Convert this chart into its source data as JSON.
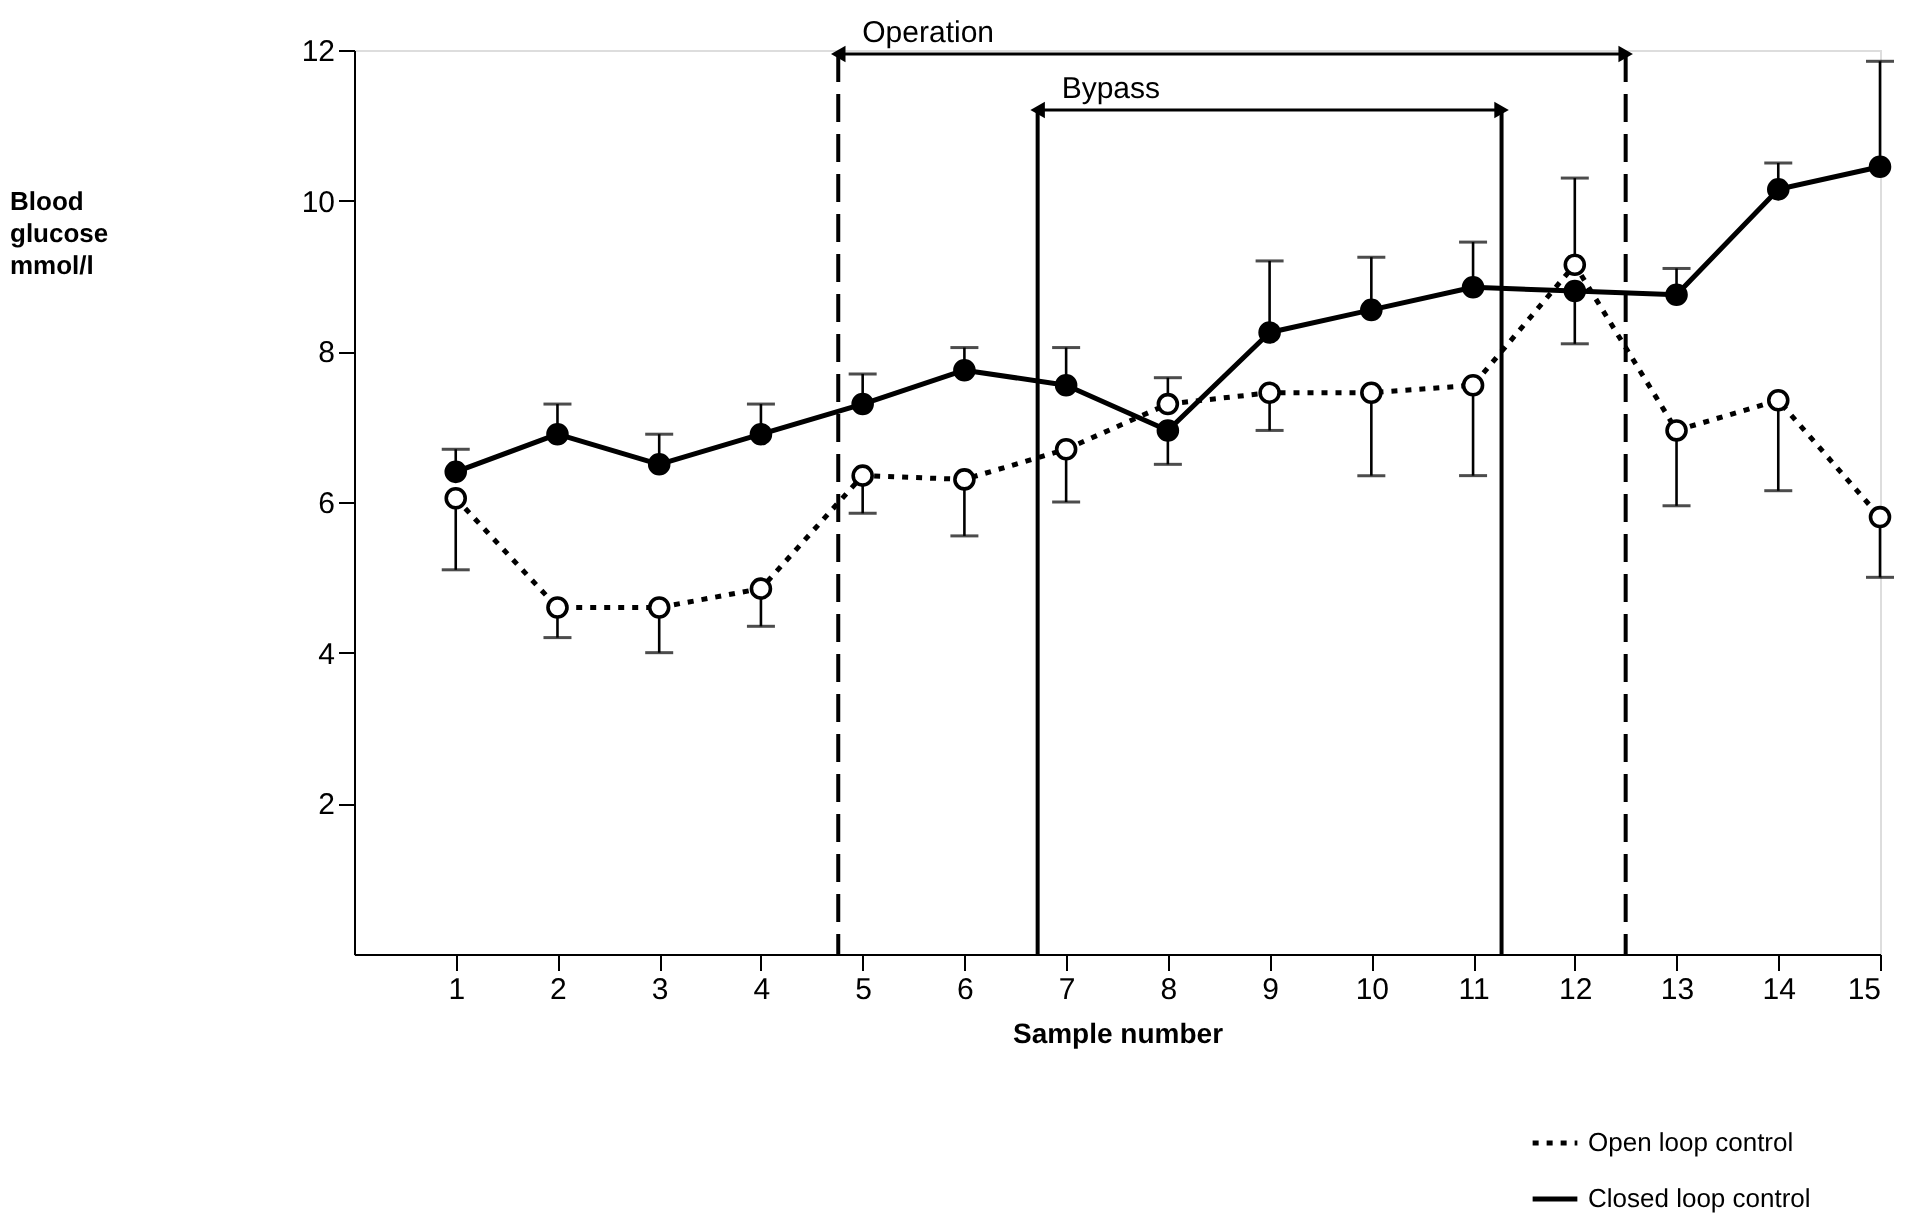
{
  "chart_data": {
    "type": "line",
    "xlabel": "Sample number",
    "annotations": [
      "Blood glucose mmol/l"
    ],
    "x": [
      1,
      2,
      3,
      4,
      5,
      6,
      7,
      8,
      9,
      10,
      11,
      12,
      13,
      14,
      15
    ],
    "xlim": [
      0,
      15
    ],
    "xticks": [
      1,
      2,
      3,
      4,
      5,
      6,
      7,
      8,
      9,
      10,
      11,
      12,
      13,
      14,
      15
    ],
    "ylim": [
      0,
      12
    ],
    "yticks": [
      2,
      4,
      6,
      8,
      10,
      12
    ],
    "series": [
      {
        "name": "Open loop control",
        "color": "#000000",
        "line_style": "dotted",
        "marker": "circle",
        "values": [
          6.05,
          4.6,
          4.6,
          4.85,
          6.35,
          6.3,
          6.7,
          7.3,
          7.45,
          7.45,
          7.55,
          9.15,
          6.95,
          7.35,
          5.8
        ],
        "errors": [
          [
            5.1,
            6.05
          ],
          [
            4.2,
            4.6
          ],
          [
            4.0,
            4.6
          ],
          [
            4.35,
            4.85
          ],
          [
            5.85,
            6.35
          ],
          [
            5.55,
            6.3
          ],
          [
            6.0,
            6.7
          ],
          [
            7.3,
            7.65
          ],
          [
            6.95,
            7.45
          ],
          [
            6.35,
            7.45
          ],
          [
            6.35,
            7.55
          ],
          [
            9.15,
            10.3
          ],
          [
            5.95,
            6.95
          ],
          [
            6.15,
            7.35
          ],
          [
            5.0,
            5.8
          ]
        ]
      },
      {
        "name": "Closed loop control",
        "color": "#000000",
        "line_style": "solid",
        "marker": "circle",
        "values": [
          6.4,
          6.9,
          6.5,
          6.9,
          7.3,
          7.75,
          7.55,
          6.95,
          8.25,
          8.55,
          8.85,
          8.8,
          8.75,
          10.15,
          10.45
        ],
        "errors": [
          [
            6.4,
            6.7
          ],
          [
            6.9,
            7.3
          ],
          [
            6.5,
            6.9
          ],
          [
            6.9,
            7.3
          ],
          [
            7.3,
            7.7
          ],
          [
            7.75,
            8.05
          ],
          [
            7.55,
            8.05
          ],
          [
            6.5,
            6.95
          ],
          [
            8.25,
            9.2
          ],
          [
            8.55,
            9.25
          ],
          [
            8.85,
            9.45
          ],
          [
            8.1,
            8.8
          ],
          [
            8.75,
            9.1
          ],
          [
            10.15,
            10.5
          ],
          [
            10.45,
            11.85
          ]
        ]
      }
    ],
    "ref_lines": [
      {
        "axis": "x",
        "value": 4.76,
        "label": "Operation",
        "line_style": "dashed",
        "color": "#000000"
      },
      {
        "axis": "x",
        "value": 6.72,
        "label": "Bypass",
        "line_style": "solid",
        "color": "#000000"
      },
      {
        "axis": "x",
        "value": 11.28,
        "line_style": "solid",
        "color": "#000000"
      },
      {
        "axis": "x",
        "value": 12.5,
        "line_style": "dashed",
        "color": "#000000"
      }
    ],
    "legend": "bottom right",
    "grid": false
  }
}
